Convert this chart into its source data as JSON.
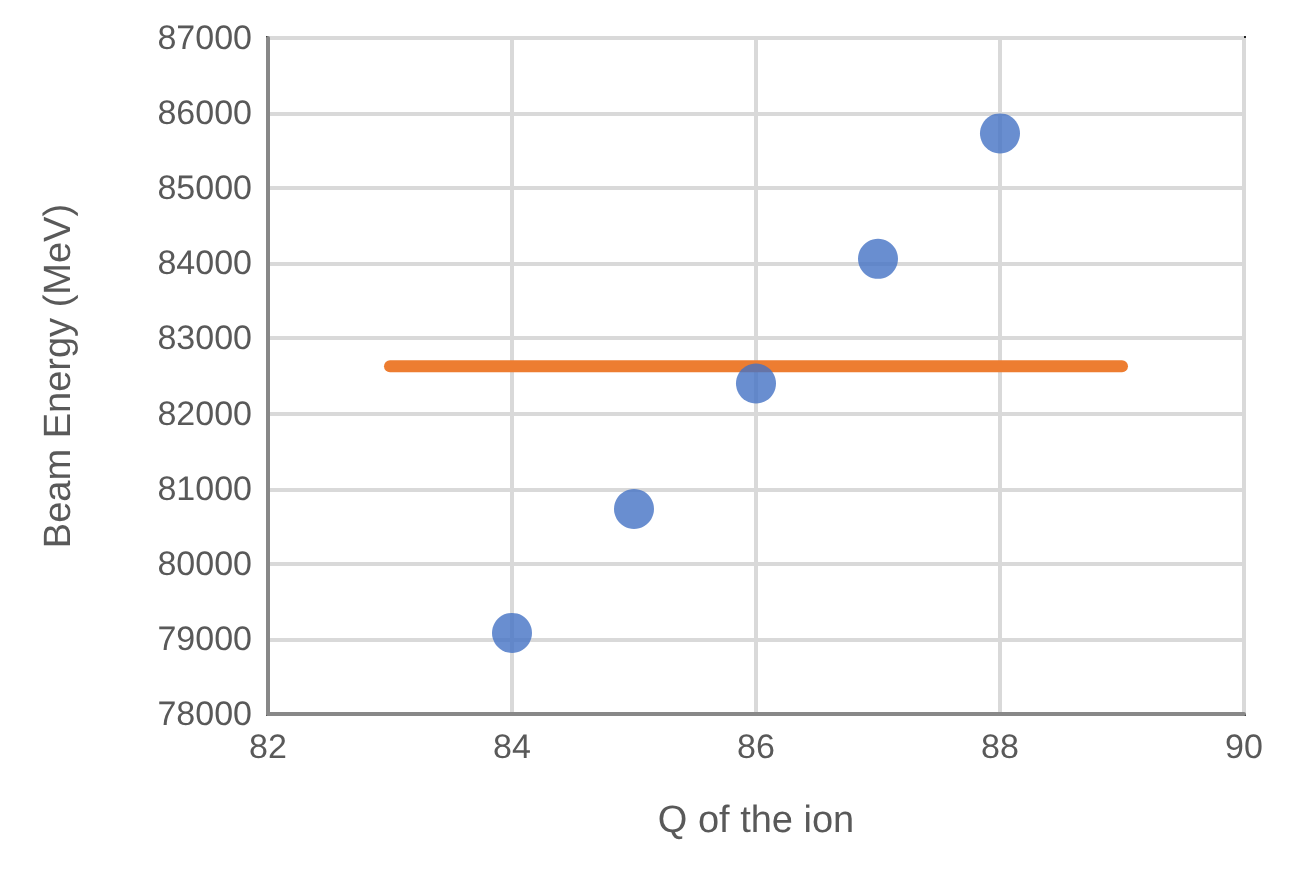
{
  "chart_data": {
    "type": "scatter",
    "xlabel": "Q of the ion",
    "ylabel": "Beam Energy (MeV)",
    "series": [
      {
        "color": "#4472c4",
        "marker": "circle",
        "x": [
          84,
          85,
          86,
          87,
          88
        ],
        "values": [
          79080,
          80730,
          82400,
          84060,
          85730
        ]
      },
      {
        "type": "line",
        "marker": "none",
        "color": "#ed7d31",
        "x": [
          83,
          89
        ],
        "values": [
          82630,
          82630
        ]
      }
    ],
    "xlim": [
      82,
      90
    ],
    "xticks": [
      82,
      84,
      86,
      88,
      90
    ],
    "ylim": [
      78000,
      87000
    ],
    "yticks": [
      78000,
      79000,
      80000,
      81000,
      82000,
      83000,
      84000,
      85000,
      86000,
      87000
    ],
    "grid": true,
    "line_style": "solid"
  }
}
